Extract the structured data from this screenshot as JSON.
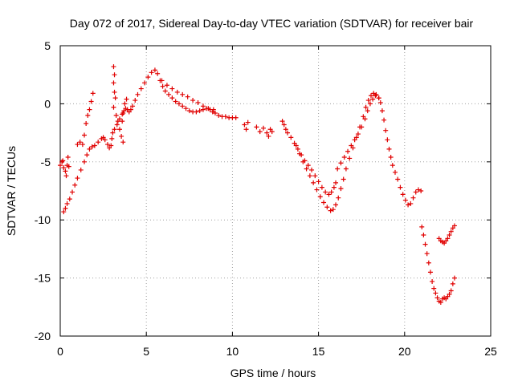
{
  "chart_data": {
    "type": "scatter",
    "title": "Day 072 of 2017, Sidereal Day-to-day VTEC variation (SDTVAR) for receiver bair",
    "xlabel": "GPS time / hours",
    "ylabel": "SDTVAR / TECUs",
    "xlim": [
      0,
      25
    ],
    "ylim": [
      -20,
      5
    ],
    "xticks": [
      "0",
      "5",
      "10",
      "15",
      "20",
      "25"
    ],
    "yticks": [
      "5",
      "0",
      "-5",
      "-10",
      "-15",
      "-20"
    ],
    "xtick_values": [
      0,
      5,
      10,
      15,
      20,
      25
    ],
    "ytick_values": [
      5,
      0,
      -5,
      -10,
      -15,
      -20
    ],
    "grid": true,
    "marker": "+",
    "color": "#e00000",
    "series": [
      {
        "name": "SDTVAR",
        "points": [
          [
            0.0,
            -5.3
          ],
          [
            0.1,
            -5.0
          ],
          [
            0.15,
            -4.9
          ],
          [
            0.2,
            -5.5
          ],
          [
            0.3,
            -5.8
          ],
          [
            0.35,
            -6.2
          ],
          [
            0.4,
            -5.3
          ],
          [
            0.45,
            -4.6
          ],
          [
            0.5,
            -5.4
          ],
          [
            0.2,
            -9.3
          ],
          [
            0.3,
            -9.0
          ],
          [
            0.4,
            -8.6
          ],
          [
            0.55,
            -8.2
          ],
          [
            0.7,
            -7.6
          ],
          [
            0.85,
            -7.0
          ],
          [
            1.0,
            -6.4
          ],
          [
            1.2,
            -5.7
          ],
          [
            1.4,
            -5.0
          ],
          [
            1.55,
            -4.4
          ],
          [
            1.7,
            -3.9
          ],
          [
            1.85,
            -3.7
          ],
          [
            2.0,
            -3.6
          ],
          [
            2.2,
            -3.3
          ],
          [
            2.4,
            -3.0
          ],
          [
            2.5,
            -2.9
          ],
          [
            2.6,
            -3.1
          ],
          [
            2.75,
            -3.5
          ],
          [
            2.85,
            -3.8
          ],
          [
            2.95,
            -3.6
          ],
          [
            3.0,
            -3.0
          ],
          [
            3.05,
            -2.5
          ],
          [
            3.15,
            -2.2
          ],
          [
            3.3,
            -1.8
          ],
          [
            3.45,
            -1.3
          ],
          [
            3.6,
            -0.9
          ],
          [
            3.7,
            -0.6
          ],
          [
            3.8,
            -0.4
          ],
          [
            3.9,
            -0.5
          ],
          [
            4.0,
            -0.7
          ],
          [
            4.1,
            -0.5
          ],
          [
            4.2,
            -0.2
          ],
          [
            4.35,
            0.3
          ],
          [
            4.5,
            0.8
          ],
          [
            4.7,
            1.3
          ],
          [
            4.9,
            1.8
          ],
          [
            5.1,
            2.3
          ],
          [
            5.3,
            2.7
          ],
          [
            5.5,
            2.9
          ],
          [
            5.65,
            2.6
          ],
          [
            5.8,
            2.0
          ],
          [
            5.95,
            1.5
          ],
          [
            6.1,
            1.1
          ],
          [
            6.3,
            0.8
          ],
          [
            6.5,
            0.5
          ],
          [
            6.7,
            0.2
          ],
          [
            6.9,
            0.0
          ],
          [
            7.1,
            -0.2
          ],
          [
            7.3,
            -0.4
          ],
          [
            7.5,
            -0.6
          ],
          [
            7.7,
            -0.7
          ],
          [
            7.9,
            -0.7
          ],
          [
            8.1,
            -0.6
          ],
          [
            8.3,
            -0.5
          ],
          [
            8.5,
            -0.4
          ],
          [
            8.7,
            -0.5
          ],
          [
            8.85,
            -0.7
          ],
          [
            9.0,
            -0.8
          ],
          [
            9.2,
            -1.0
          ],
          [
            9.4,
            -1.1
          ],
          [
            9.6,
            -1.1
          ],
          [
            9.8,
            -1.2
          ],
          [
            10.0,
            -1.2
          ],
          [
            10.2,
            -1.2
          ],
          [
            1.0,
            -3.5
          ],
          [
            1.15,
            -3.3
          ],
          [
            1.3,
            -3.5
          ],
          [
            1.4,
            -2.7
          ],
          [
            1.5,
            -1.7
          ],
          [
            1.6,
            -1.0
          ],
          [
            1.7,
            -0.5
          ],
          [
            1.8,
            0.2
          ],
          [
            1.9,
            0.9
          ],
          [
            3.1,
            3.2
          ],
          [
            3.15,
            2.5
          ],
          [
            3.1,
            1.8
          ],
          [
            3.15,
            1.0
          ],
          [
            3.2,
            0.5
          ],
          [
            3.1,
            -0.3
          ],
          [
            3.25,
            -1.0
          ],
          [
            3.35,
            -1.5
          ],
          [
            3.45,
            -2.2
          ],
          [
            3.55,
            -2.8
          ],
          [
            3.65,
            -3.3
          ],
          [
            3.6,
            -1.5
          ],
          [
            3.65,
            -0.8
          ],
          [
            3.75,
            0.0
          ],
          [
            3.85,
            0.4
          ],
          [
            5.9,
            2.0
          ],
          [
            6.2,
            1.6
          ],
          [
            6.5,
            1.3
          ],
          [
            6.8,
            1.0
          ],
          [
            7.1,
            0.8
          ],
          [
            7.4,
            0.6
          ],
          [
            7.7,
            0.3
          ],
          [
            8.0,
            0.1
          ],
          [
            8.3,
            -0.2
          ],
          [
            8.6,
            -0.4
          ],
          [
            8.9,
            -0.5
          ],
          [
            10.7,
            -1.8
          ],
          [
            10.8,
            -2.2
          ],
          [
            10.9,
            -1.6
          ],
          [
            11.4,
            -2.0
          ],
          [
            11.6,
            -2.4
          ],
          [
            11.8,
            -2.1
          ],
          [
            12.0,
            -2.5
          ],
          [
            12.1,
            -2.8
          ],
          [
            12.2,
            -2.2
          ],
          [
            12.3,
            -2.4
          ],
          [
            12.9,
            -1.5
          ],
          [
            13.0,
            -1.8
          ],
          [
            13.1,
            -2.2
          ],
          [
            13.2,
            -2.5
          ],
          [
            13.4,
            -2.9
          ],
          [
            13.6,
            -3.4
          ],
          [
            13.8,
            -3.9
          ],
          [
            14.0,
            -4.4
          ],
          [
            14.2,
            -4.9
          ],
          [
            14.4,
            -5.3
          ],
          [
            14.6,
            -5.7
          ],
          [
            14.8,
            -6.2
          ],
          [
            15.0,
            -6.7
          ],
          [
            15.2,
            -7.2
          ],
          [
            15.4,
            -7.6
          ],
          [
            15.6,
            -7.8
          ],
          [
            15.75,
            -7.6
          ],
          [
            15.9,
            -7.2
          ],
          [
            16.0,
            -6.8
          ],
          [
            13.7,
            -3.6
          ],
          [
            13.9,
            -4.3
          ],
          [
            14.1,
            -5.0
          ],
          [
            14.3,
            -5.6
          ],
          [
            14.5,
            -6.2
          ],
          [
            14.7,
            -6.8
          ],
          [
            14.9,
            -7.4
          ],
          [
            15.1,
            -8.0
          ],
          [
            15.3,
            -8.5
          ],
          [
            15.5,
            -8.9
          ],
          [
            15.7,
            -9.2
          ],
          [
            15.85,
            -9.1
          ],
          [
            16.0,
            -8.7
          ],
          [
            16.15,
            -8.1
          ],
          [
            16.3,
            -7.3
          ],
          [
            16.45,
            -6.5
          ],
          [
            16.6,
            -5.6
          ],
          [
            16.8,
            -4.7
          ],
          [
            17.0,
            -3.8
          ],
          [
            17.2,
            -2.9
          ],
          [
            17.4,
            -2.0
          ],
          [
            17.6,
            -1.1
          ],
          [
            17.75,
            -0.3
          ],
          [
            17.9,
            0.3
          ],
          [
            18.05,
            0.7
          ],
          [
            18.2,
            0.9
          ],
          [
            18.35,
            0.8
          ],
          [
            18.5,
            0.5
          ],
          [
            16.1,
            -5.6
          ],
          [
            16.3,
            -5.1
          ],
          [
            16.5,
            -4.6
          ],
          [
            16.7,
            -4.1
          ],
          [
            16.9,
            -3.6
          ],
          [
            17.1,
            -3.1
          ],
          [
            17.3,
            -2.6
          ],
          [
            17.5,
            -2.0
          ],
          [
            17.7,
            -1.3
          ],
          [
            17.85,
            -0.6
          ],
          [
            18.0,
            0.0
          ],
          [
            18.15,
            0.4
          ],
          [
            18.3,
            0.7
          ],
          [
            18.5,
            0.5
          ],
          [
            18.6,
            0.1
          ],
          [
            18.7,
            -0.6
          ],
          [
            18.8,
            -1.4
          ],
          [
            18.9,
            -2.3
          ],
          [
            19.0,
            -3.1
          ],
          [
            19.1,
            -3.9
          ],
          [
            19.2,
            -4.6
          ],
          [
            19.3,
            -5.3
          ],
          [
            19.45,
            -5.9
          ],
          [
            19.6,
            -6.5
          ],
          [
            19.75,
            -7.2
          ],
          [
            19.9,
            -7.8
          ],
          [
            20.05,
            -8.3
          ],
          [
            20.2,
            -8.7
          ],
          [
            20.35,
            -8.6
          ],
          [
            20.5,
            -8.1
          ],
          [
            20.65,
            -7.6
          ],
          [
            20.8,
            -7.4
          ],
          [
            20.95,
            -7.5
          ],
          [
            21.0,
            -10.6
          ],
          [
            21.1,
            -11.3
          ],
          [
            21.2,
            -12.1
          ],
          [
            21.3,
            -12.9
          ],
          [
            21.4,
            -13.7
          ],
          [
            21.5,
            -14.5
          ],
          [
            21.6,
            -15.3
          ],
          [
            21.7,
            -15.9
          ],
          [
            21.8,
            -16.3
          ],
          [
            21.9,
            -16.7
          ],
          [
            22.0,
            -17.0
          ],
          [
            22.1,
            -17.1
          ],
          [
            22.2,
            -16.8
          ],
          [
            22.3,
            -16.7
          ],
          [
            22.4,
            -16.8
          ],
          [
            22.5,
            -16.6
          ],
          [
            22.6,
            -16.4
          ],
          [
            22.7,
            -16.1
          ],
          [
            22.8,
            -15.5
          ],
          [
            22.9,
            -15.0
          ],
          [
            22.0,
            -11.6
          ],
          [
            22.1,
            -11.8
          ],
          [
            22.2,
            -11.9
          ],
          [
            22.3,
            -12.0
          ],
          [
            22.4,
            -11.8
          ],
          [
            22.5,
            -11.6
          ],
          [
            22.6,
            -11.3
          ],
          [
            22.7,
            -11.0
          ],
          [
            22.8,
            -10.7
          ],
          [
            22.9,
            -10.5
          ]
        ]
      }
    ]
  }
}
